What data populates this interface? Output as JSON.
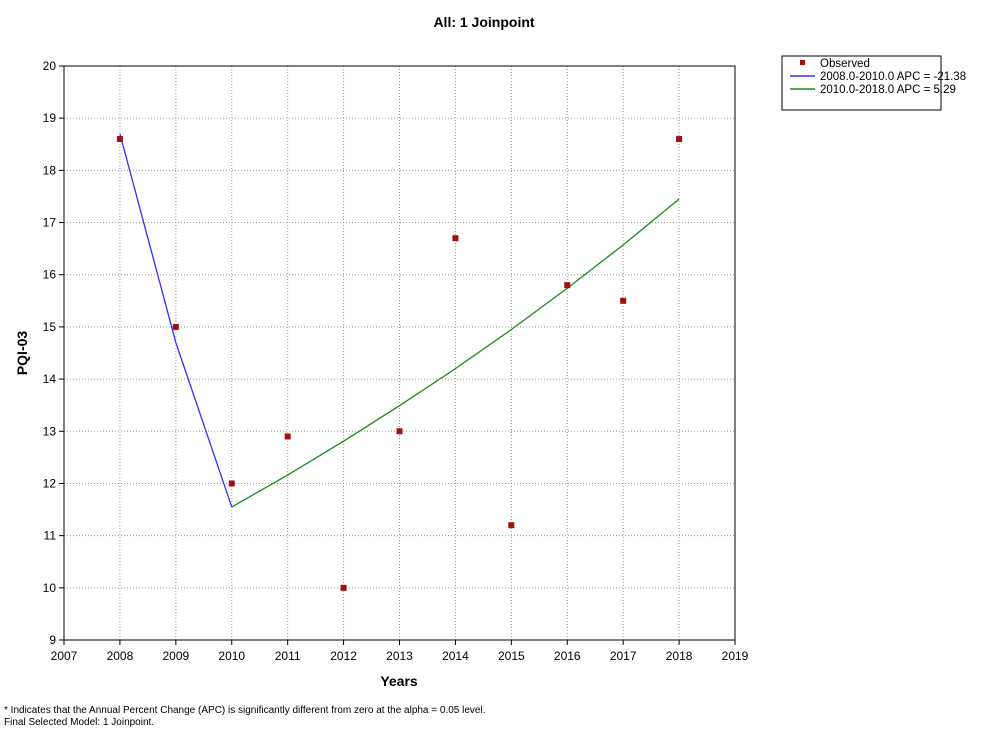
{
  "chart_data": {
    "type": "scatter",
    "title": "All: 1 Joinpoint",
    "xlabel": "Years",
    "ylabel": "PQI-03",
    "xlim": [
      2007,
      2019
    ],
    "ylim": [
      9,
      20
    ],
    "x_ticks": [
      2007,
      2008,
      2009,
      2010,
      2011,
      2012,
      2013,
      2014,
      2015,
      2016,
      2017,
      2018,
      2019
    ],
    "y_ticks": [
      9,
      10,
      11,
      12,
      13,
      14,
      15,
      16,
      17,
      18,
      19,
      20
    ],
    "grid": true,
    "legend_position": "top-right, outside plot",
    "series": [
      {
        "name": "Observed",
        "kind": "points",
        "color": "#a01010",
        "x": [
          2008,
          2009,
          2010,
          2011,
          2012,
          2013,
          2014,
          2015,
          2016,
          2017,
          2018
        ],
        "y": [
          18.6,
          15.0,
          12.0,
          12.9,
          10.0,
          13.0,
          16.7,
          11.2,
          15.8,
          15.5,
          18.6
        ]
      },
      {
        "name": "2008.0-2010.0 APC = -21.38",
        "kind": "line",
        "color": "#3030ff",
        "x": [
          2008,
          2009,
          2010
        ],
        "y": [
          18.7,
          14.7,
          11.55
        ]
      },
      {
        "name": "2010.0-2018.0 APC =  5.29",
        "kind": "line",
        "color": "#1a8c1a",
        "x": [
          2010,
          2011,
          2012,
          2013,
          2014,
          2015,
          2016,
          2017,
          2018
        ],
        "y": [
          11.55,
          12.16,
          12.81,
          13.49,
          14.2,
          14.95,
          15.74,
          16.57,
          17.45
        ]
      }
    ]
  },
  "footnotes": [
    "* Indicates that the Annual Percent Change (APC) is significantly different from zero at the alpha = 0.05 level.",
    "Final Selected Model: 1 Joinpoint."
  ]
}
